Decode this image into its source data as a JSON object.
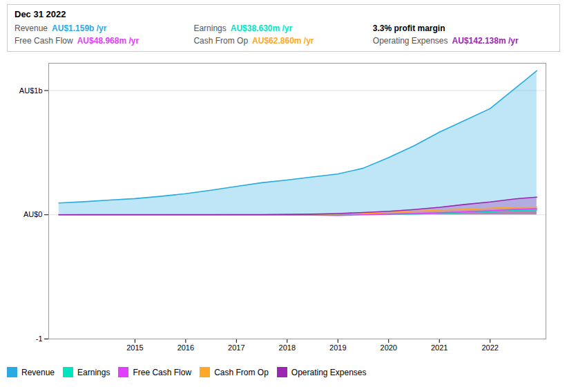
{
  "chart_data": {
    "type": "area",
    "x": [
      2013.5,
      2014.0,
      2014.5,
      2015.0,
      2015.5,
      2016.0,
      2016.5,
      2017.0,
      2017.5,
      2018.0,
      2018.5,
      2019.0,
      2019.5,
      2020.0,
      2020.5,
      2021.0,
      2021.5,
      2022.0,
      2022.5,
      2022.92
    ],
    "series": [
      {
        "name": "Revenue",
        "color": "#29abe2",
        "values": [
          0.095,
          0.105,
          0.118,
          0.13,
          0.148,
          0.17,
          0.198,
          0.228,
          0.258,
          0.28,
          0.305,
          0.328,
          0.375,
          0.46,
          0.555,
          0.665,
          0.76,
          0.855,
          1.02,
          1.159
        ]
      },
      {
        "name": "Earnings",
        "color": "#00e5c0",
        "values": [
          0.0005,
          0.001,
          0.001,
          0.001,
          0.001,
          0.001,
          0.001,
          0.001,
          0.001,
          0.001,
          0.001,
          0.002,
          0.003,
          0.004,
          0.006,
          0.012,
          0.018,
          0.026,
          0.034,
          0.03863
        ]
      },
      {
        "name": "Free Cash Flow",
        "color": "#e040fb",
        "values": [
          0.0,
          0.0,
          0.0,
          0.0,
          0.0,
          0.0,
          0.0,
          0.0,
          0.0,
          -0.002,
          -0.003,
          -0.005,
          0.0,
          0.005,
          0.01,
          0.015,
          0.024,
          0.032,
          0.043,
          0.04897
        ]
      },
      {
        "name": "Cash From Op",
        "color": "#ffa726",
        "values": [
          0.001,
          0.002,
          0.002,
          0.002,
          0.002,
          0.003,
          0.003,
          0.004,
          0.004,
          0.004,
          0.005,
          0.006,
          0.01,
          0.018,
          0.028,
          0.038,
          0.044,
          0.053,
          0.06,
          0.06286
        ]
      },
      {
        "name": "Operating Expenses",
        "color": "#9c27b0",
        "values": [
          0.0,
          0.0,
          0.0,
          0.0,
          0.0,
          0.0,
          0.0,
          0.0,
          0.0,
          0.003,
          0.005,
          0.01,
          0.018,
          0.028,
          0.042,
          0.06,
          0.083,
          0.103,
          0.128,
          0.14214
        ]
      }
    ],
    "xlim": [
      2013.3,
      2023.1
    ],
    "xticks": [
      2015,
      2016,
      2017,
      2018,
      2019,
      2020,
      2021,
      2022
    ],
    "ylim": [
      -1,
      1.22
    ],
    "yticks": [
      -1,
      {
        "value": 0,
        "label": "AU$0"
      },
      {
        "value": 1,
        "label": "AU$1b"
      }
    ],
    "grid": true,
    "legend": "bottom",
    "annotations": [
      {
        "title": "Dec 31 2022",
        "rows": [
          {
            "label": "Revenue",
            "value": "AU$1.159b /yr",
            "color": "#29abe2"
          },
          {
            "label": "Earnings",
            "value": "AU$38.630m /yr",
            "color": "#00e5c0"
          },
          {
            "value": "3.3% profit margin"
          },
          {
            "label": "Free Cash Flow",
            "value": "AU$48.968m /yr",
            "color": "#e040fb"
          },
          {
            "label": "Cash From Op",
            "value": "AU$62.860m /yr",
            "color": "#ffa726"
          },
          {
            "label": "Operating Expenses",
            "value": "AU$142.138m /yr",
            "color": "#9c27b0"
          }
        ]
      }
    ]
  }
}
